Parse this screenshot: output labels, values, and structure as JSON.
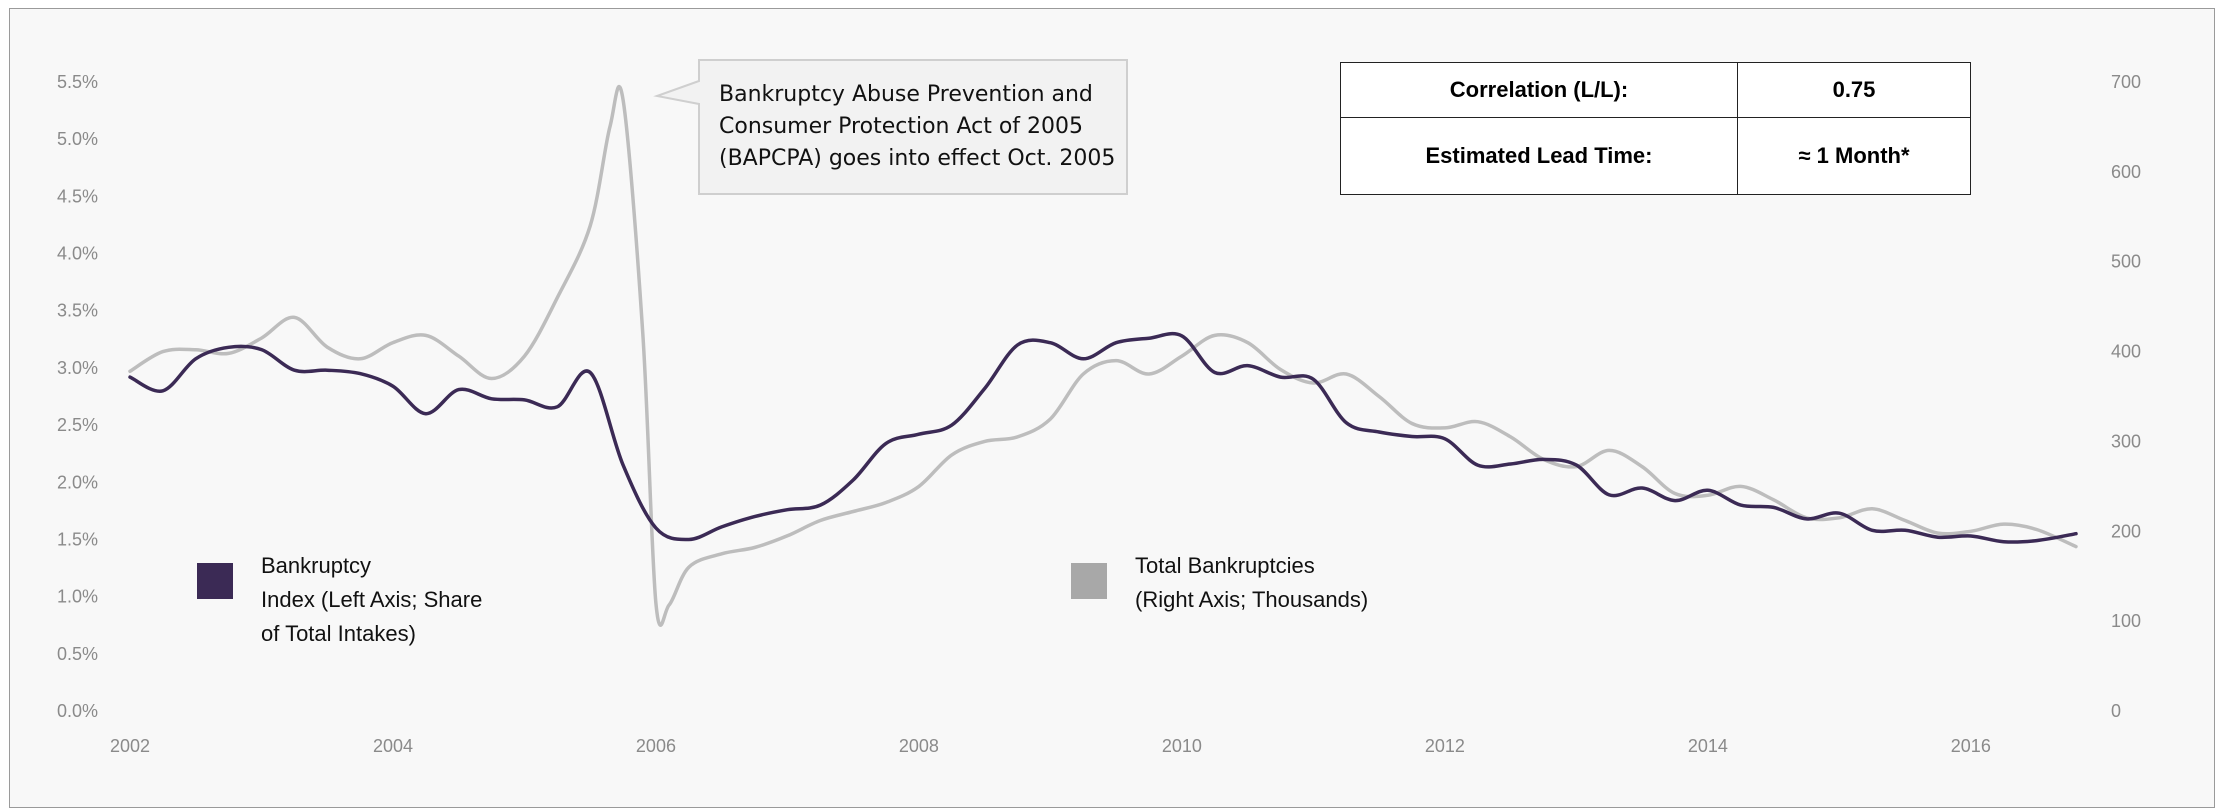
{
  "chart_data": {
    "type": "line",
    "title": "",
    "x_range": [
      2002,
      2016.8
    ],
    "x_ticks": [
      "2002",
      "2004",
      "2006",
      "2008",
      "2010",
      "2012",
      "2014",
      "2016"
    ],
    "y_left": {
      "range": [
        0,
        5.5
      ],
      "ticks": [
        "0.0%",
        "0.5%",
        "1.0%",
        "1.5%",
        "2.0%",
        "2.5%",
        "3.0%",
        "3.5%",
        "4.0%",
        "4.5%",
        "5.0%",
        "5.5%"
      ]
    },
    "y_right": {
      "range": [
        0,
        700
      ],
      "ticks": [
        "0",
        "100",
        "200",
        "300",
        "400",
        "500",
        "600",
        "700"
      ]
    },
    "series": [
      {
        "name": "Bankruptcy Index (Left Axis; Share of Total Intakes)",
        "axis": "left",
        "color": "#3b2a55",
        "x": [
          2002.0,
          2002.25,
          2002.5,
          2002.75,
          2003.0,
          2003.25,
          2003.5,
          2003.75,
          2004.0,
          2004.25,
          2004.5,
          2004.75,
          2005.0,
          2005.25,
          2005.5,
          2005.75,
          2006.0,
          2006.25,
          2006.5,
          2006.75,
          2007.0,
          2007.25,
          2007.5,
          2007.75,
          2008.0,
          2008.25,
          2008.5,
          2008.75,
          2009.0,
          2009.25,
          2009.5,
          2009.75,
          2010.0,
          2010.25,
          2010.5,
          2010.75,
          2011.0,
          2011.25,
          2011.5,
          2011.75,
          2012.0,
          2012.25,
          2012.5,
          2012.75,
          2013.0,
          2013.25,
          2013.5,
          2013.75,
          2014.0,
          2014.25,
          2014.5,
          2014.75,
          2015.0,
          2015.25,
          2015.5,
          2015.75,
          2016.0,
          2016.25,
          2016.5,
          2016.8
        ],
        "values": [
          2.92,
          2.8,
          3.08,
          3.18,
          3.16,
          2.98,
          2.98,
          2.95,
          2.84,
          2.6,
          2.81,
          2.73,
          2.72,
          2.66,
          2.96,
          2.15,
          1.6,
          1.5,
          1.61,
          1.7,
          1.76,
          1.8,
          2.02,
          2.34,
          2.42,
          2.5,
          2.82,
          3.2,
          3.22,
          3.08,
          3.22,
          3.26,
          3.28,
          2.96,
          3.02,
          2.92,
          2.9,
          2.52,
          2.44,
          2.4,
          2.38,
          2.15,
          2.16,
          2.2,
          2.15,
          1.89,
          1.95,
          1.84,
          1.93,
          1.8,
          1.78,
          1.68,
          1.73,
          1.58,
          1.58,
          1.52,
          1.53,
          1.48,
          1.49,
          1.55
        ]
      },
      {
        "name": "Total Bankruptcies (Right Axis; Thousands)",
        "axis": "right",
        "color": "#bdbdbd",
        "x": [
          2002.0,
          2002.25,
          2002.5,
          2002.75,
          2003.0,
          2003.25,
          2003.5,
          2003.75,
          2004.0,
          2004.25,
          2004.5,
          2004.75,
          2005.0,
          2005.25,
          2005.5,
          2005.65,
          2005.75,
          2005.9,
          2006.0,
          2006.1,
          2006.25,
          2006.5,
          2006.75,
          2007.0,
          2007.25,
          2007.5,
          2007.75,
          2008.0,
          2008.25,
          2008.5,
          2008.75,
          2009.0,
          2009.25,
          2009.5,
          2009.75,
          2010.0,
          2010.25,
          2010.5,
          2010.75,
          2011.0,
          2011.25,
          2011.5,
          2011.75,
          2012.0,
          2012.25,
          2012.5,
          2012.75,
          2013.0,
          2013.25,
          2013.5,
          2013.75,
          2014.0,
          2014.25,
          2014.5,
          2014.75,
          2015.0,
          2015.25,
          2015.5,
          2015.75,
          2016.0,
          2016.25,
          2016.5,
          2016.8
        ],
        "values": [
          378,
          400,
          402,
          398,
          415,
          438,
          405,
          392,
          410,
          418,
          395,
          370,
          395,
          460,
          540,
          650,
          680,
          420,
          120,
          118,
          160,
          175,
          182,
          195,
          212,
          222,
          232,
          250,
          285,
          300,
          305,
          325,
          375,
          390,
          375,
          395,
          418,
          410,
          380,
          365,
          375,
          350,
          320,
          315,
          322,
          305,
          280,
          272,
          290,
          272,
          242,
          240,
          250,
          235,
          215,
          215,
          225,
          212,
          198,
          200,
          208,
          202,
          183
        ]
      }
    ],
    "legend": [
      {
        "name_lines": [
          "Bankruptcy",
          "Index (Left Axis; Share",
          "of Total Intakes)"
        ],
        "color": "#3b2a55"
      },
      {
        "name_lines": [
          "Total Bankruptcies",
          "(Right Axis; Thousands)"
        ],
        "color": "#a8a8a8"
      }
    ],
    "annotation": {
      "lines": [
        "Bankruptcy Abuse Prevention and",
        "Consumer Protection Act of 2005",
        "(BAPCPA) goes into effect Oct. 2005"
      ]
    },
    "stats_table": {
      "correlation_label": "Correlation (L/L):",
      "correlation_value": "0.75",
      "lead_time_label": "Estimated Lead Time:",
      "lead_time_value": "≈ 1 Month*"
    }
  }
}
